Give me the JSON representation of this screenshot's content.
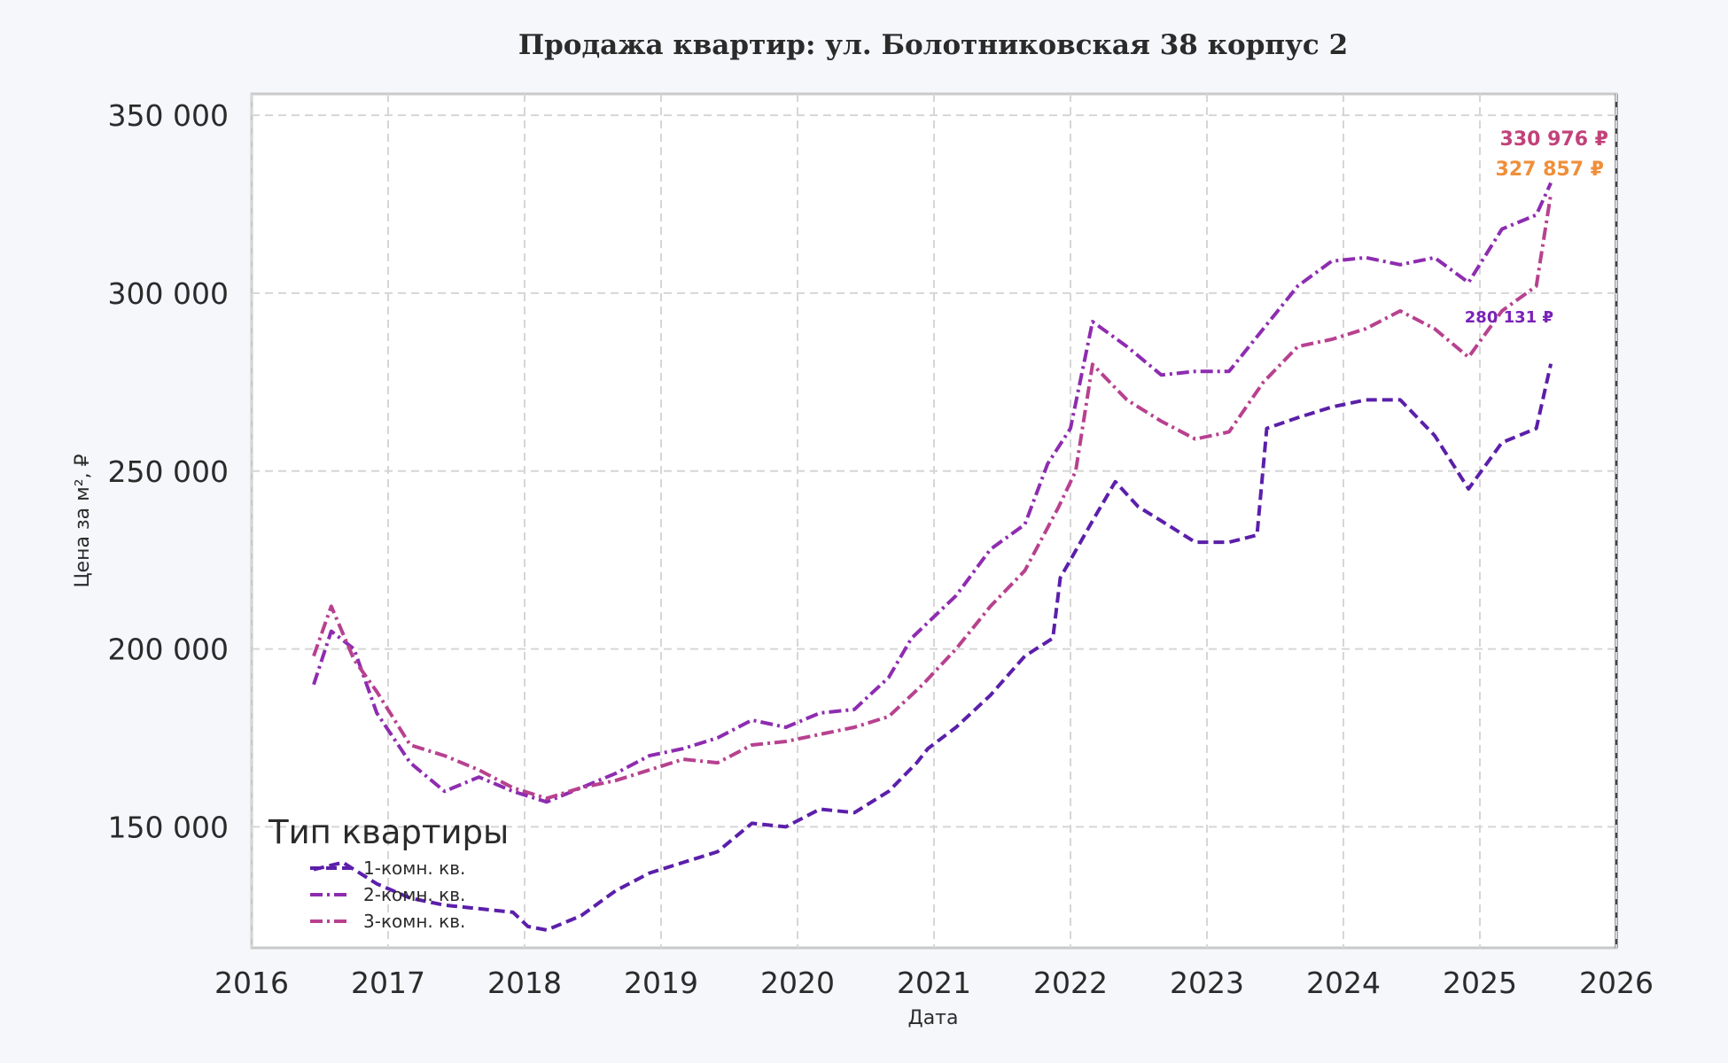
{
  "chart_data": {
    "type": "line",
    "title": "Продажа квартир: ул. Болотниковская 38 корпус 2",
    "xlabel": "Дата",
    "ylabel": "Цена за м², ₽",
    "xlim": [
      "2016-01-01",
      "2026-01-01"
    ],
    "ylim": [
      116000,
      356000
    ],
    "x_ticks": [
      "2016",
      "2017",
      "2018",
      "2019",
      "2020",
      "2021",
      "2022",
      "2023",
      "2024",
      "2025",
      "2026"
    ],
    "y_ticks": [
      150000,
      200000,
      250000,
      300000,
      350000
    ],
    "y_tick_labels": [
      "150 000",
      "200 000",
      "250 000",
      "300 000",
      "350 000"
    ],
    "grid": true,
    "legend": {
      "title": "Тип квартиры",
      "position": "bottom-left"
    },
    "series": [
      {
        "name": "1-комн. кв.",
        "color": "#5b1faa",
        "dash": "dashed",
        "end_label": "280 131 ₽",
        "end_label_color": "#7a22b8",
        "points": [
          [
            "2016-06-15",
            138000
          ],
          [
            "2016-09-01",
            140000
          ],
          [
            "2016-12-01",
            134000
          ],
          [
            "2017-03-01",
            130000
          ],
          [
            "2017-06-01",
            128000
          ],
          [
            "2017-09-01",
            127000
          ],
          [
            "2017-12-01",
            126000
          ],
          [
            "2018-01-10",
            122000
          ],
          [
            "2018-03-01",
            121000
          ],
          [
            "2018-06-01",
            125000
          ],
          [
            "2018-09-01",
            132000
          ],
          [
            "2018-12-01",
            137000
          ],
          [
            "2019-03-01",
            140000
          ],
          [
            "2019-06-01",
            143000
          ],
          [
            "2019-09-01",
            151000
          ],
          [
            "2019-12-01",
            150000
          ],
          [
            "2020-03-01",
            155000
          ],
          [
            "2020-06-01",
            154000
          ],
          [
            "2020-09-01",
            160000
          ],
          [
            "2020-11-15",
            168000
          ],
          [
            "2020-12-15",
            172000
          ],
          [
            "2021-03-01",
            178000
          ],
          [
            "2021-06-01",
            187000
          ],
          [
            "2021-09-01",
            198000
          ],
          [
            "2021-11-15",
            203000
          ],
          [
            "2021-12-05",
            220000
          ],
          [
            "2022-03-01",
            236000
          ],
          [
            "2022-05-01",
            247000
          ],
          [
            "2022-07-01",
            240000
          ],
          [
            "2022-09-01",
            236000
          ],
          [
            "2022-12-01",
            230000
          ],
          [
            "2023-03-01",
            230000
          ],
          [
            "2023-05-15",
            232000
          ],
          [
            "2023-06-10",
            262000
          ],
          [
            "2023-09-01",
            265000
          ],
          [
            "2023-12-01",
            268000
          ],
          [
            "2024-03-01",
            270000
          ],
          [
            "2024-06-01",
            270000
          ],
          [
            "2024-09-01",
            260000
          ],
          [
            "2024-12-01",
            245000
          ],
          [
            "2025-03-01",
            258000
          ],
          [
            "2025-06-01",
            262000
          ],
          [
            "2025-07-10",
            280131
          ]
        ]
      },
      {
        "name": "2-комн. кв.",
        "color": "#8e2cb0",
        "dash": "dashdot",
        "end_label": "330 976 ₽",
        "end_label_color": "#c2427a",
        "points": [
          [
            "2016-06-15",
            190000
          ],
          [
            "2016-08-01",
            205000
          ],
          [
            "2016-10-01",
            200000
          ],
          [
            "2016-12-01",
            182000
          ],
          [
            "2017-03-01",
            168000
          ],
          [
            "2017-06-01",
            160000
          ],
          [
            "2017-09-01",
            164000
          ],
          [
            "2017-12-01",
            160000
          ],
          [
            "2018-03-01",
            157000
          ],
          [
            "2018-06-01",
            161000
          ],
          [
            "2018-09-01",
            165000
          ],
          [
            "2018-12-01",
            170000
          ],
          [
            "2019-03-01",
            172000
          ],
          [
            "2019-06-01",
            175000
          ],
          [
            "2019-09-01",
            180000
          ],
          [
            "2019-12-01",
            178000
          ],
          [
            "2020-03-01",
            182000
          ],
          [
            "2020-06-01",
            183000
          ],
          [
            "2020-09-01",
            192000
          ],
          [
            "2020-11-01",
            203000
          ],
          [
            "2021-03-01",
            215000
          ],
          [
            "2021-06-01",
            228000
          ],
          [
            "2021-09-01",
            235000
          ],
          [
            "2021-11-01",
            252000
          ],
          [
            "2022-01-01",
            262000
          ],
          [
            "2022-03-01",
            292000
          ],
          [
            "2022-06-01",
            285000
          ],
          [
            "2022-09-01",
            277000
          ],
          [
            "2022-12-01",
            278000
          ],
          [
            "2023-03-01",
            278000
          ],
          [
            "2023-06-01",
            290000
          ],
          [
            "2023-09-01",
            302000
          ],
          [
            "2023-12-01",
            309000
          ],
          [
            "2024-03-01",
            310000
          ],
          [
            "2024-06-01",
            308000
          ],
          [
            "2024-09-01",
            310000
          ],
          [
            "2024-12-01",
            303000
          ],
          [
            "2025-03-01",
            318000
          ],
          [
            "2025-06-01",
            322000
          ],
          [
            "2025-07-10",
            330976
          ]
        ]
      },
      {
        "name": "3-комн. кв.",
        "color": "#b8418f",
        "dash": "dashdot",
        "end_label": "327 857 ₽",
        "end_label_color": "#ef8f3a",
        "points": [
          [
            "2016-06-15",
            198000
          ],
          [
            "2016-08-01",
            212000
          ],
          [
            "2016-10-01",
            197000
          ],
          [
            "2016-12-01",
            188000
          ],
          [
            "2017-03-01",
            173000
          ],
          [
            "2017-06-01",
            170000
          ],
          [
            "2017-09-01",
            166000
          ],
          [
            "2017-12-01",
            161000
          ],
          [
            "2018-03-01",
            158000
          ],
          [
            "2018-06-01",
            161000
          ],
          [
            "2018-09-01",
            163000
          ],
          [
            "2018-12-01",
            166000
          ],
          [
            "2019-03-01",
            169000
          ],
          [
            "2019-06-01",
            168000
          ],
          [
            "2019-09-01",
            173000
          ],
          [
            "2019-12-01",
            174000
          ],
          [
            "2020-03-01",
            176000
          ],
          [
            "2020-06-01",
            178000
          ],
          [
            "2020-09-01",
            181000
          ],
          [
            "2020-12-01",
            190000
          ],
          [
            "2021-03-01",
            200000
          ],
          [
            "2021-06-01",
            212000
          ],
          [
            "2021-09-01",
            222000
          ],
          [
            "2021-12-01",
            240000
          ],
          [
            "2022-01-15",
            250000
          ],
          [
            "2022-03-01",
            280000
          ],
          [
            "2022-06-01",
            270000
          ],
          [
            "2022-09-01",
            264000
          ],
          [
            "2022-12-01",
            259000
          ],
          [
            "2023-03-01",
            261000
          ],
          [
            "2023-06-01",
            275000
          ],
          [
            "2023-09-01",
            285000
          ],
          [
            "2023-12-01",
            287000
          ],
          [
            "2024-03-01",
            290000
          ],
          [
            "2024-06-01",
            295000
          ],
          [
            "2024-09-01",
            290000
          ],
          [
            "2024-12-01",
            282000
          ],
          [
            "2025-03-01",
            295000
          ],
          [
            "2025-06-01",
            302000
          ],
          [
            "2025-07-10",
            327857
          ]
        ]
      }
    ]
  }
}
